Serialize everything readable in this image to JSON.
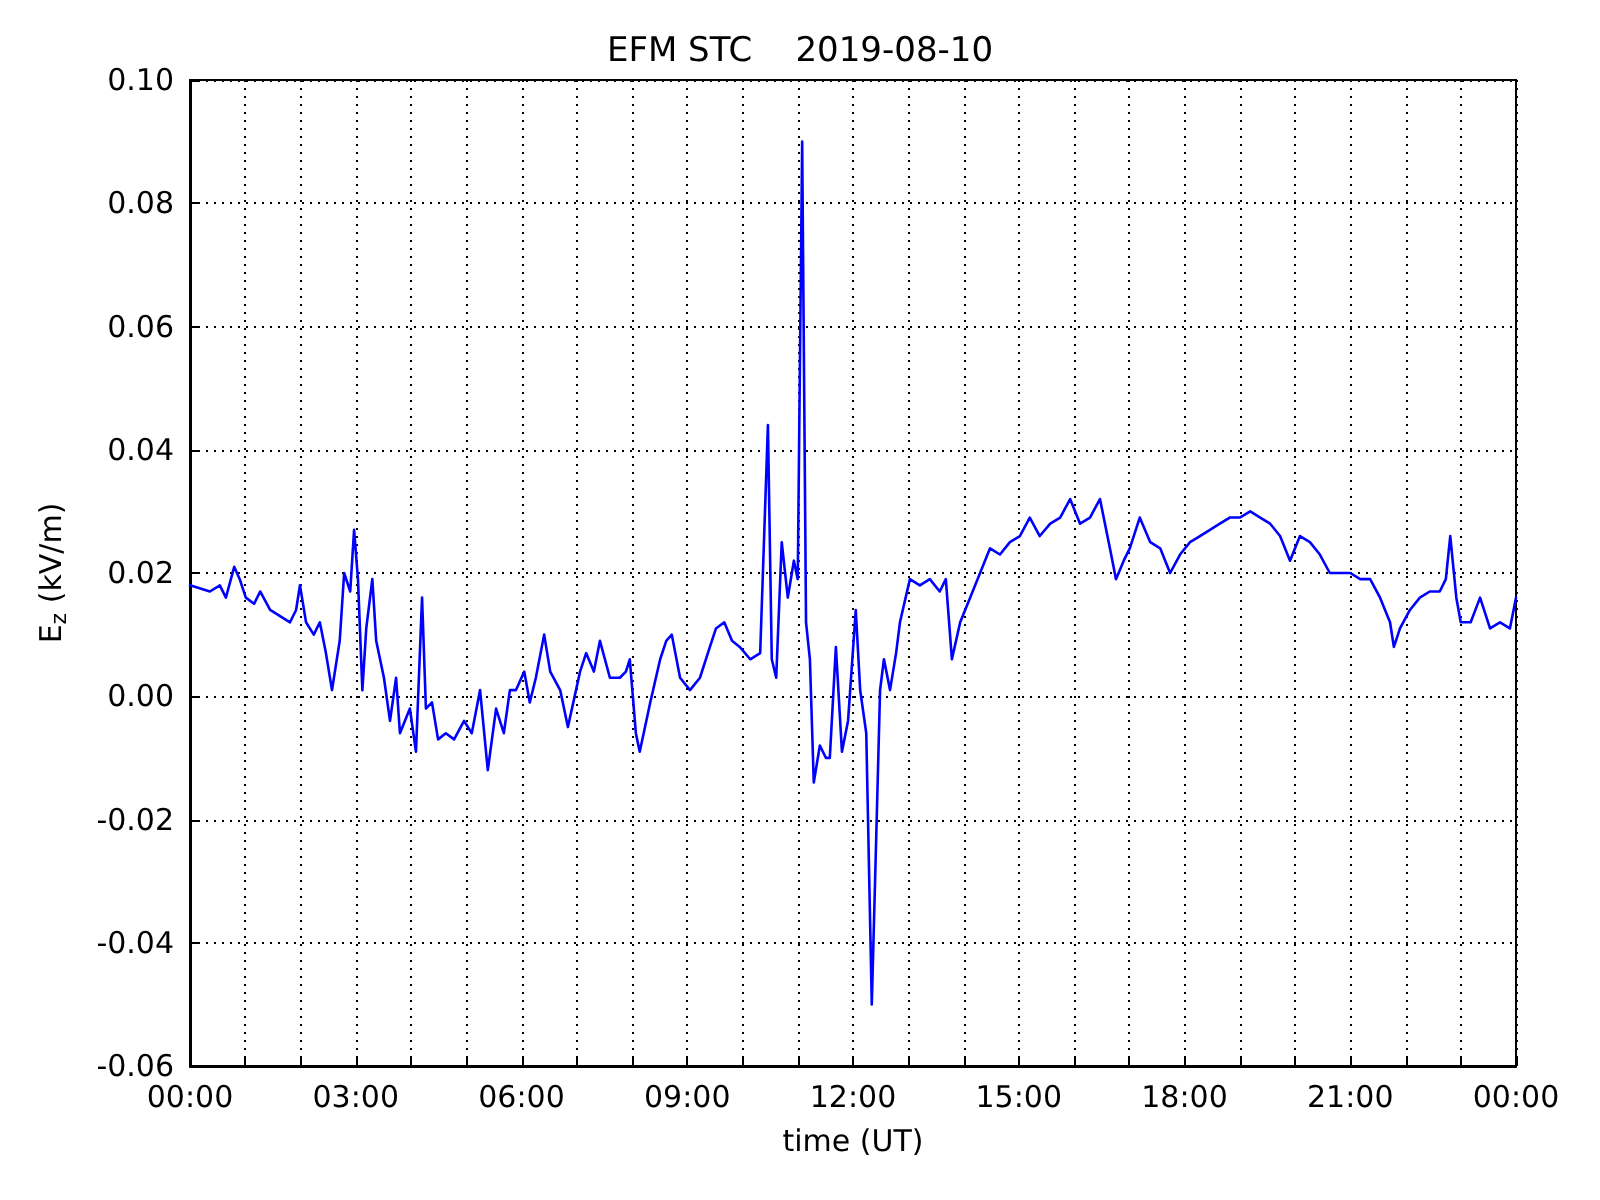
{
  "chart_data": {
    "type": "line",
    "title": "EFM STC    2019-08-10",
    "xlabel": "time (UT)",
    "ylabel": "E$_{z}$ (kV/m)",
    "x": [
      0,
      0.36,
      0.54,
      0.65,
      0.8,
      0.9,
      1.01,
      1.16,
      1.27,
      1.45,
      1.63,
      1.81,
      1.92,
      1.99,
      2.1,
      2.24,
      2.35,
      2.46,
      2.57,
      2.71,
      2.79,
      2.9,
      2.97,
      3.04,
      3.12,
      3.19,
      3.3,
      3.37,
      3.51,
      3.62,
      3.73,
      3.8,
      3.98,
      4.09,
      4.2,
      4.27,
      4.38,
      4.49,
      4.63,
      4.78,
      4.96,
      5.1,
      5.25,
      5.39,
      5.54,
      5.68,
      5.79,
      5.9,
      6.05,
      6.15,
      6.26,
      6.41,
      6.52,
      6.7,
      6.84,
      7.06,
      7.17,
      7.31,
      7.42,
      7.6,
      7.78,
      7.89,
      7.96,
      8.07,
      8.14,
      8.33,
      8.51,
      8.62,
      8.72,
      8.87,
      9.05,
      9.23,
      9.41,
      9.52,
      9.67,
      9.81,
      9.95,
      10.14,
      10.32,
      10.46,
      10.53,
      10.61,
      10.71,
      10.82,
      10.93,
      11.0,
      11.08,
      11.15,
      11.22,
      11.29,
      11.4,
      11.51,
      11.58,
      11.69,
      11.8,
      11.91,
      12.05,
      12.13,
      12.24,
      12.34,
      12.42,
      12.49,
      12.56,
      12.67,
      12.78,
      12.85,
      13.03,
      13.21,
      13.39,
      13.57,
      13.68,
      13.79,
      13.94,
      14.12,
      14.3,
      14.48,
      14.66,
      14.84,
      15.02,
      15.2,
      15.38,
      15.57,
      15.75,
      15.93,
      16.11,
      16.29,
      16.47,
      16.65,
      16.76,
      16.9,
      17.01,
      17.19,
      17.38,
      17.56,
      17.74,
      17.92,
      18.1,
      18.28,
      18.46,
      18.64,
      18.82,
      19.0,
      19.19,
      19.37,
      19.55,
      19.73,
      19.91,
      20.09,
      20.27,
      20.45,
      20.63,
      20.81,
      21.0,
      21.18,
      21.36,
      21.54,
      21.72,
      21.79,
      21.9,
      22.08,
      22.26,
      22.44,
      22.62,
      22.73,
      22.81,
      22.92,
      23.0,
      23.18,
      23.35,
      23.53,
      23.71,
      23.89,
      24.0
    ],
    "series": [
      {
        "color": "#0000ff",
        "values": [
          0.018,
          0.017,
          0.018,
          0.016,
          0.021,
          0.019,
          0.016,
          0.015,
          0.017,
          0.014,
          0.013,
          0.012,
          0.014,
          0.018,
          0.012,
          0.01,
          0.012,
          0.007,
          0.001,
          0.009,
          0.02,
          0.017,
          0.027,
          0.019,
          0.001,
          0.011,
          0.019,
          0.009,
          0.003,
          -0.004,
          0.003,
          -0.006,
          -0.002,
          -0.009,
          0.016,
          -0.002,
          -0.001,
          -0.007,
          -0.006,
          -0.007,
          -0.004,
          -0.006,
          0.001,
          -0.012,
          -0.002,
          -0.006,
          0.001,
          0.001,
          0.004,
          -0.001,
          0.003,
          0.01,
          0.004,
          0.001,
          -0.005,
          0.004,
          0.007,
          0.004,
          0.009,
          0.003,
          0.003,
          0.004,
          0.006,
          -0.006,
          -0.009,
          -0.001,
          0.006,
          0.009,
          0.01,
          0.003,
          0.001,
          0.003,
          0.008,
          0.011,
          0.012,
          0.009,
          0.008,
          0.006,
          0.007,
          0.044,
          0.006,
          0.003,
          0.025,
          0.016,
          0.022,
          0.019,
          0.09,
          0.012,
          0.006,
          -0.014,
          -0.008,
          -0.01,
          -0.01,
          0.008,
          -0.009,
          -0.004,
          0.014,
          0.001,
          -0.006,
          -0.05,
          -0.023,
          0.001,
          0.006,
          0.001,
          0.007,
          0.012,
          0.019,
          0.018,
          0.019,
          0.017,
          0.019,
          0.006,
          0.012,
          0.016,
          0.02,
          0.024,
          0.023,
          0.025,
          0.026,
          0.029,
          0.026,
          0.028,
          0.029,
          0.032,
          0.028,
          0.029,
          0.032,
          0.024,
          0.019,
          0.022,
          0.024,
          0.029,
          0.025,
          0.024,
          0.02,
          0.023,
          0.025,
          0.026,
          0.027,
          0.028,
          0.029,
          0.029,
          0.03,
          0.029,
          0.028,
          0.026,
          0.022,
          0.026,
          0.025,
          0.023,
          0.02,
          0.02,
          0.02,
          0.019,
          0.019,
          0.016,
          0.012,
          0.008,
          0.011,
          0.014,
          0.016,
          0.017,
          0.017,
          0.019,
          0.026,
          0.016,
          0.012,
          0.012,
          0.016,
          0.011,
          0.012,
          0.011,
          0.016
        ]
      }
    ],
    "xlim": [
      0,
      24
    ],
    "xticks": [
      {
        "value": 0,
        "label": "00:00"
      },
      {
        "value": 1,
        "label": null
      },
      {
        "value": 2,
        "label": null
      },
      {
        "value": 3,
        "label": "03:00"
      },
      {
        "value": 4,
        "label": null
      },
      {
        "value": 5,
        "label": null
      },
      {
        "value": 6,
        "label": "06:00"
      },
      {
        "value": 7,
        "label": null
      },
      {
        "value": 8,
        "label": null
      },
      {
        "value": 9,
        "label": "09:00"
      },
      {
        "value": 10,
        "label": null
      },
      {
        "value": 11,
        "label": null
      },
      {
        "value": 12,
        "label": "12:00"
      },
      {
        "value": 13,
        "label": null
      },
      {
        "value": 14,
        "label": null
      },
      {
        "value": 15,
        "label": "15:00"
      },
      {
        "value": 16,
        "label": null
      },
      {
        "value": 17,
        "label": null
      },
      {
        "value": 18,
        "label": "18:00"
      },
      {
        "value": 19,
        "label": null
      },
      {
        "value": 20,
        "label": null
      },
      {
        "value": 21,
        "label": "21:00"
      },
      {
        "value": 22,
        "label": null
      },
      {
        "value": 23,
        "label": null
      },
      {
        "value": 24,
        "label": "00:00"
      }
    ],
    "ylim": [
      -0.06,
      0.1
    ],
    "yticks": [
      {
        "value": -0.06,
        "label": "-0.06"
      },
      {
        "value": -0.04,
        "label": "-0.04"
      },
      {
        "value": -0.02,
        "label": "-0.02"
      },
      {
        "value": 0,
        "label": "0.00"
      },
      {
        "value": 0.02,
        "label": "0.02"
      },
      {
        "value": 0.04,
        "label": "0.04"
      },
      {
        "value": 0.06,
        "label": "0.06"
      },
      {
        "value": 0.08,
        "label": "0.08"
      },
      {
        "value": 0.1,
        "label": "0.10"
      }
    ],
    "grid": true,
    "marker": "none",
    "line_style": "solid"
  }
}
